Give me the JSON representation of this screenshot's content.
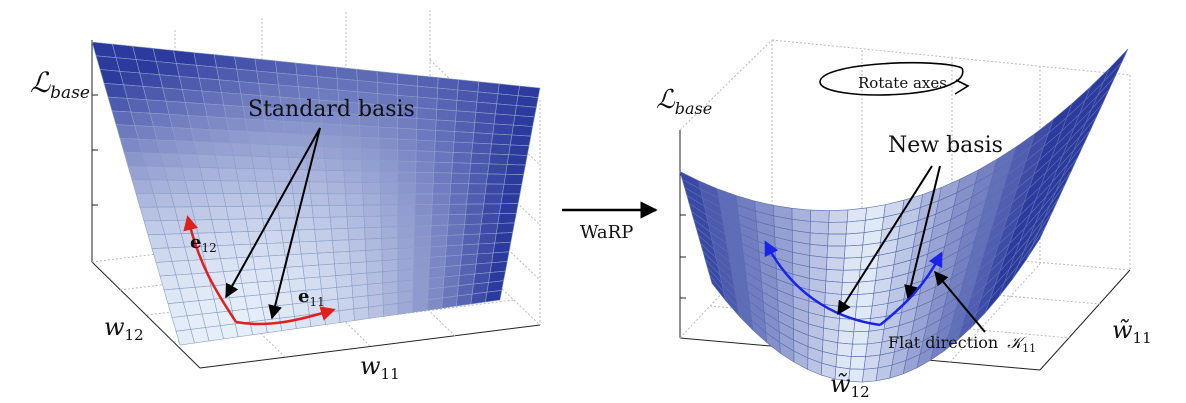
{
  "left_panel": {
    "z_axis": {
      "main": "ℒ",
      "sub": "base"
    },
    "x_axis": {
      "main": "w",
      "sub": "11"
    },
    "y_axis": {
      "main": "w",
      "sub": "12"
    },
    "annotation": "Standard basis",
    "vec_e12": {
      "main": "e",
      "sub": "12"
    },
    "vec_e11": {
      "main": "e",
      "sub": "11"
    }
  },
  "arrow": {
    "label": "WaRP"
  },
  "right_panel": {
    "z_axis": {
      "main": "ℒ",
      "sub": "base"
    },
    "rotate_label": "Rotate axes",
    "annotation": "New basis",
    "flat_label": "Flat direction",
    "flat_symbol": {
      "main": "𝒦",
      "sub": "11"
    },
    "x_axis": {
      "main": "w̃",
      "sub": "12"
    },
    "y_axis": {
      "main": "w̃",
      "sub": "11"
    }
  },
  "colors": {
    "surface_dark": "#2c3a9e",
    "surface_light": "#e8f0fa",
    "std_basis_curve": "#e0201c",
    "new_basis_curve": "#1a23e8"
  }
}
